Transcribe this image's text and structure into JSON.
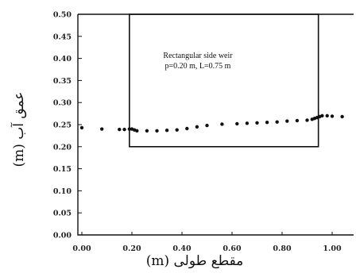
{
  "chart_data": {
    "type": "scatter",
    "title": "",
    "xlabel": "مقطع طولی (m)",
    "ylabel": "عمق آب (m)",
    "xlim": [
      0.0,
      1.1
    ],
    "ylim": [
      0.0,
      0.5
    ],
    "x_ticks": [
      "0.00",
      "0.20",
      "0.40",
      "0.60",
      "0.80",
      "1.00"
    ],
    "y_ticks": [
      "0.00",
      "0.05",
      "0.10",
      "0.15",
      "0.20",
      "0.25",
      "0.30",
      "0.35",
      "0.40",
      "0.45",
      "0.50"
    ],
    "grid": false,
    "annotation": {
      "line1": "Rectangular side weir",
      "line2": "p=0.20 m, L=0.75 m"
    },
    "weir_outline": {
      "x_start": 0.19,
      "x_end": 0.945,
      "y_bottom": 0.2,
      "y_top": 0.5
    },
    "series": [
      {
        "marker": "filled-dot",
        "x": [
          0.0,
          0.08,
          0.15,
          0.17,
          0.19,
          0.2,
          0.21,
          0.22,
          0.26,
          0.3,
          0.34,
          0.38,
          0.42,
          0.46,
          0.5,
          0.56,
          0.62,
          0.66,
          0.7,
          0.74,
          0.78,
          0.82,
          0.86,
          0.9,
          0.92,
          0.93,
          0.94,
          0.95,
          0.96,
          0.98,
          1.0,
          1.04
        ],
        "y": [
          0.243,
          0.24,
          0.239,
          0.239,
          0.24,
          0.24,
          0.238,
          0.236,
          0.236,
          0.236,
          0.237,
          0.238,
          0.241,
          0.245,
          0.248,
          0.251,
          0.252,
          0.253,
          0.254,
          0.255,
          0.256,
          0.258,
          0.259,
          0.26,
          0.262,
          0.264,
          0.266,
          0.268,
          0.27,
          0.27,
          0.269,
          0.268
        ]
      }
    ]
  }
}
